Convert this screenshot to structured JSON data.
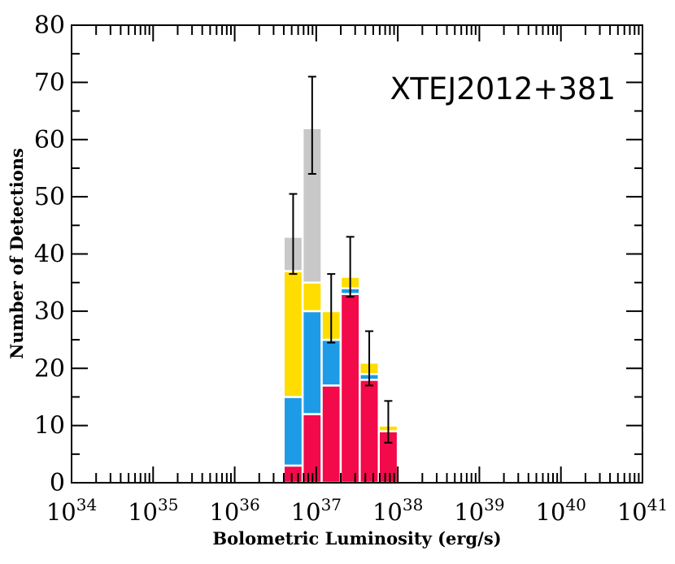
{
  "chart_data": {
    "type": "bar",
    "stacked": true,
    "annotation": "XTEJ2012+381",
    "xlabel": "Bolometric Luminosity (erg/s)",
    "ylabel": "Number of Detections",
    "xscale": "log",
    "xlim_exponent": [
      34,
      41
    ],
    "xtick_base": "10",
    "xtick_exponents": [
      "34",
      "35",
      "36",
      "37",
      "38",
      "39",
      "40",
      "41"
    ],
    "ylim": [
      0,
      80
    ],
    "yticks": [
      "0",
      "10",
      "20",
      "30",
      "40",
      "50",
      "60",
      "70",
      "80"
    ],
    "grid": false,
    "bin_edges_log": [
      36.6,
      36.8333,
      37.0667,
      37.3,
      37.5333,
      37.7667,
      38.0
    ],
    "series": [
      {
        "color": "#f20a4a",
        "values": [
          3,
          12,
          17,
          33,
          18,
          9
        ]
      },
      {
        "color": "#1e9be6",
        "values": [
          12,
          18,
          8,
          1,
          1,
          0
        ]
      },
      {
        "color": "#ffdd00",
        "values": [
          22,
          5,
          5,
          2,
          2,
          1
        ]
      },
      {
        "color": "#c8c8c8",
        "values": [
          6,
          27,
          0,
          0,
          0,
          0
        ]
      }
    ],
    "errors": [
      {
        "center": 43,
        "low": 36.5,
        "high": 50.5
      },
      {
        "center": 62,
        "low": 54,
        "high": 71
      },
      {
        "center": 30,
        "low": 24.5,
        "high": 36.5
      },
      {
        "center": 36,
        "low": 32.5,
        "high": 43
      },
      {
        "center": 21,
        "low": 17,
        "high": 26.5
      },
      {
        "center": 10,
        "low": 7,
        "high": 14.3
      }
    ]
  }
}
